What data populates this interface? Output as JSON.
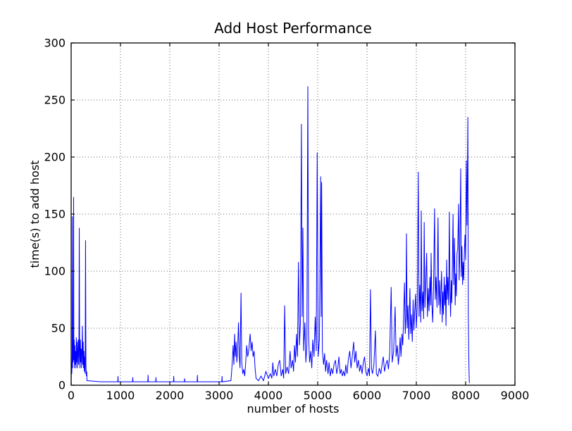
{
  "figure": {
    "background": "#ffffff"
  },
  "chart_data": {
    "type": "line",
    "title": "Add Host Performance",
    "xlabel": "number of hosts",
    "ylabel": "time(s) to add host",
    "xlim": [
      0,
      9000
    ],
    "ylim": [
      0,
      300
    ],
    "xticks": [
      0,
      1000,
      2000,
      3000,
      4000,
      5000,
      6000,
      7000,
      8000,
      9000
    ],
    "yticks": [
      0,
      50,
      100,
      150,
      200,
      250,
      300
    ],
    "grid": true,
    "grid_style": "dotted",
    "grid_color": "#666666",
    "axis_color": "#000000",
    "line_color": "#0000ff",
    "legend": "none",
    "series": [
      {
        "name": "time to add host",
        "points": [
          [
            0,
            3
          ],
          [
            8,
            20
          ],
          [
            14,
            10
          ],
          [
            20,
            30
          ],
          [
            25,
            148
          ],
          [
            28,
            15
          ],
          [
            34,
            38
          ],
          [
            42,
            20
          ],
          [
            50,
            165
          ],
          [
            55,
            22
          ],
          [
            62,
            40
          ],
          [
            68,
            15
          ],
          [
            75,
            35
          ],
          [
            82,
            18
          ],
          [
            90,
            30
          ],
          [
            98,
            15
          ],
          [
            105,
            42
          ],
          [
            112,
            20
          ],
          [
            120,
            38
          ],
          [
            128,
            15
          ],
          [
            136,
            28
          ],
          [
            144,
            40
          ],
          [
            152,
            18
          ],
          [
            158,
            32
          ],
          [
            165,
            138
          ],
          [
            172,
            25
          ],
          [
            180,
            15
          ],
          [
            188,
            40
          ],
          [
            196,
            20
          ],
          [
            205,
            32
          ],
          [
            212,
            15
          ],
          [
            220,
            28
          ],
          [
            228,
            52
          ],
          [
            236,
            18
          ],
          [
            244,
            38
          ],
          [
            252,
            15
          ],
          [
            260,
            30
          ],
          [
            268,
            12
          ],
          [
            276,
            25
          ],
          [
            284,
            10
          ],
          [
            292,
            127
          ],
          [
            300,
            18
          ],
          [
            308,
            8
          ],
          [
            316,
            12
          ],
          [
            322,
            4
          ],
          [
            600,
            3
          ],
          [
            945,
            3
          ],
          [
            950,
            8
          ],
          [
            955,
            3
          ],
          [
            1245,
            3
          ],
          [
            1250,
            7
          ],
          [
            1255,
            3
          ],
          [
            1555,
            3
          ],
          [
            1560,
            9
          ],
          [
            1565,
            3
          ],
          [
            1715,
            3
          ],
          [
            1720,
            7
          ],
          [
            1725,
            3
          ],
          [
            2075,
            3
          ],
          [
            2080,
            8
          ],
          [
            2085,
            3
          ],
          [
            2295,
            3
          ],
          [
            2300,
            6
          ],
          [
            2305,
            3
          ],
          [
            2555,
            3
          ],
          [
            2560,
            9
          ],
          [
            2565,
            3
          ],
          [
            3055,
            3
          ],
          [
            3060,
            8
          ],
          [
            3065,
            3
          ],
          [
            3240,
            4
          ],
          [
            3255,
            12
          ],
          [
            3270,
            22
          ],
          [
            3285,
            35
          ],
          [
            3300,
            18
          ],
          [
            3315,
            45
          ],
          [
            3330,
            25
          ],
          [
            3345,
            38
          ],
          [
            3360,
            20
          ],
          [
            3375,
            30
          ],
          [
            3395,
            55
          ],
          [
            3410,
            25
          ],
          [
            3425,
            15
          ],
          [
            3445,
            81
          ],
          [
            3460,
            20
          ],
          [
            3480,
            10
          ],
          [
            3500,
            14
          ],
          [
            3520,
            8
          ],
          [
            3540,
            20
          ],
          [
            3560,
            35
          ],
          [
            3580,
            25
          ],
          [
            3600,
            30
          ],
          [
            3630,
            45
          ],
          [
            3650,
            30
          ],
          [
            3670,
            38
          ],
          [
            3690,
            25
          ],
          [
            3710,
            30
          ],
          [
            3730,
            15
          ],
          [
            3750,
            6
          ],
          [
            3800,
            4
          ],
          [
            3850,
            8
          ],
          [
            3900,
            4
          ],
          [
            3950,
            12
          ],
          [
            4000,
            6
          ],
          [
            4040,
            10
          ],
          [
            4070,
            6
          ],
          [
            4090,
            20
          ],
          [
            4110,
            8
          ],
          [
            4140,
            14
          ],
          [
            4170,
            8
          ],
          [
            4200,
            18
          ],
          [
            4230,
            22
          ],
          [
            4260,
            8
          ],
          [
            4290,
            14
          ],
          [
            4310,
            6
          ],
          [
            4330,
            70
          ],
          [
            4350,
            10
          ],
          [
            4380,
            16
          ],
          [
            4410,
            10
          ],
          [
            4440,
            30
          ],
          [
            4460,
            15
          ],
          [
            4490,
            22
          ],
          [
            4510,
            12
          ],
          [
            4530,
            35
          ],
          [
            4550,
            20
          ],
          [
            4570,
            45
          ],
          [
            4590,
            25
          ],
          [
            4610,
            108
          ],
          [
            4630,
            35
          ],
          [
            4650,
            55
          ],
          [
            4670,
            229
          ],
          [
            4685,
            60
          ],
          [
            4700,
            138
          ],
          [
            4715,
            30
          ],
          [
            4740,
            55
          ],
          [
            4760,
            20
          ],
          [
            4780,
            35
          ],
          [
            4800,
            262
          ],
          [
            4815,
            45
          ],
          [
            4835,
            20
          ],
          [
            4860,
            30
          ],
          [
            4880,
            15
          ],
          [
            4900,
            40
          ],
          [
            4925,
            25
          ],
          [
            4950,
            60
          ],
          [
            4970,
            30
          ],
          [
            4990,
            204
          ],
          [
            5010,
            25
          ],
          [
            5035,
            40
          ],
          [
            5060,
            183
          ],
          [
            5072,
            60
          ],
          [
            5080,
            178
          ],
          [
            5095,
            30
          ],
          [
            5120,
            18
          ],
          [
            5140,
            28
          ],
          [
            5160,
            12
          ],
          [
            5180,
            22
          ],
          [
            5210,
            10
          ],
          [
            5230,
            20
          ],
          [
            5255,
            8
          ],
          [
            5280,
            15
          ],
          [
            5305,
            10
          ],
          [
            5330,
            18
          ],
          [
            5360,
            22
          ],
          [
            5385,
            10
          ],
          [
            5410,
            16
          ],
          [
            5430,
            25
          ],
          [
            5455,
            10
          ],
          [
            5480,
            14
          ],
          [
            5500,
            8
          ],
          [
            5525,
            12
          ],
          [
            5550,
            8
          ],
          [
            5570,
            18
          ],
          [
            5595,
            10
          ],
          [
            5620,
            22
          ],
          [
            5650,
            30
          ],
          [
            5675,
            15
          ],
          [
            5700,
            25
          ],
          [
            5730,
            38
          ],
          [
            5750,
            20
          ],
          [
            5775,
            30
          ],
          [
            5800,
            15
          ],
          [
            5825,
            22
          ],
          [
            5850,
            12
          ],
          [
            5875,
            18
          ],
          [
            5900,
            10
          ],
          [
            5925,
            20
          ],
          [
            5950,
            25
          ],
          [
            5975,
            12
          ],
          [
            6000,
            8
          ],
          [
            6030,
            15
          ],
          [
            6050,
            8
          ],
          [
            6070,
            84
          ],
          [
            6090,
            15
          ],
          [
            6110,
            10
          ],
          [
            6140,
            18
          ],
          [
            6170,
            48
          ],
          [
            6190,
            10
          ],
          [
            6220,
            8
          ],
          [
            6250,
            15
          ],
          [
            6280,
            10
          ],
          [
            6310,
            20
          ],
          [
            6330,
            25
          ],
          [
            6355,
            12
          ],
          [
            6380,
            18
          ],
          [
            6410,
            22
          ],
          [
            6435,
            14
          ],
          [
            6460,
            28
          ],
          [
            6490,
            86
          ],
          [
            6510,
            20
          ],
          [
            6540,
            30
          ],
          [
            6570,
            69
          ],
          [
            6590,
            25
          ],
          [
            6615,
            35
          ],
          [
            6635,
            18
          ],
          [
            6655,
            28
          ],
          [
            6672,
            42
          ],
          [
            6690,
            25
          ],
          [
            6708,
            45
          ],
          [
            6725,
            35
          ],
          [
            6742,
            60
          ],
          [
            6760,
            90
          ],
          [
            6775,
            45
          ],
          [
            6790,
            60
          ],
          [
            6800,
            133
          ],
          [
            6815,
            50
          ],
          [
            6830,
            70
          ],
          [
            6848,
            40
          ],
          [
            6870,
            85
          ],
          [
            6885,
            45
          ],
          [
            6900,
            62
          ],
          [
            6918,
            38
          ],
          [
            6935,
            75
          ],
          [
            6950,
            48
          ],
          [
            6968,
            65
          ],
          [
            6985,
            80
          ],
          [
            7000,
            50
          ],
          [
            7018,
            68
          ],
          [
            7040,
            187
          ],
          [
            7055,
            60
          ],
          [
            7072,
            88
          ],
          [
            7090,
            55
          ],
          [
            7100,
            153
          ],
          [
            7115,
            65
          ],
          [
            7132,
            82
          ],
          [
            7148,
            58
          ],
          [
            7160,
            143
          ],
          [
            7175,
            68
          ],
          [
            7192,
            90
          ],
          [
            7210,
            116
          ],
          [
            7225,
            60
          ],
          [
            7242,
            85
          ],
          [
            7258,
            65
          ],
          [
            7275,
            95
          ],
          [
            7290,
            70
          ],
          [
            7300,
            116
          ],
          [
            7315,
            72
          ],
          [
            7332,
            55
          ],
          [
            7350,
            88
          ],
          [
            7370,
            155
          ],
          [
            7385,
            75
          ],
          [
            7400,
            95
          ],
          [
            7420,
            68
          ],
          [
            7440,
            147
          ],
          [
            7455,
            70
          ],
          [
            7470,
            92
          ],
          [
            7485,
            62
          ],
          [
            7500,
            85
          ],
          [
            7512,
            100
          ],
          [
            7525,
            55
          ],
          [
            7538,
            82
          ],
          [
            7550,
            62
          ],
          [
            7565,
            95
          ],
          [
            7578,
            70
          ],
          [
            7590,
            88
          ],
          [
            7602,
            52
          ],
          [
            7615,
            110
          ],
          [
            7628,
            75
          ],
          [
            7640,
            95
          ],
          [
            7655,
            70
          ],
          [
            7670,
            152
          ],
          [
            7682,
            85
          ],
          [
            7695,
            60
          ],
          [
            7708,
            92
          ],
          [
            7720,
            72
          ],
          [
            7732,
            108
          ],
          [
            7745,
            150
          ],
          [
            7758,
            88
          ],
          [
            7775,
            129
          ],
          [
            7788,
            70
          ],
          [
            7800,
            98
          ],
          [
            7812,
            78
          ],
          [
            7825,
            115
          ],
          [
            7840,
            120
          ],
          [
            7857,
            159
          ],
          [
            7868,
            92
          ],
          [
            7880,
            112
          ],
          [
            7900,
            190
          ],
          [
            7912,
            95
          ],
          [
            7925,
            122
          ],
          [
            7938,
            88
          ],
          [
            7950,
            108
          ],
          [
            7962,
            92
          ],
          [
            7975,
            118
          ],
          [
            7988,
            132
          ],
          [
            8000,
            110
          ],
          [
            8015,
            197
          ],
          [
            8028,
            140
          ],
          [
            8045,
            235
          ],
          [
            8055,
            60
          ],
          [
            8063,
            28
          ],
          [
            8070,
            10
          ],
          [
            8075,
            2
          ]
        ]
      }
    ]
  }
}
